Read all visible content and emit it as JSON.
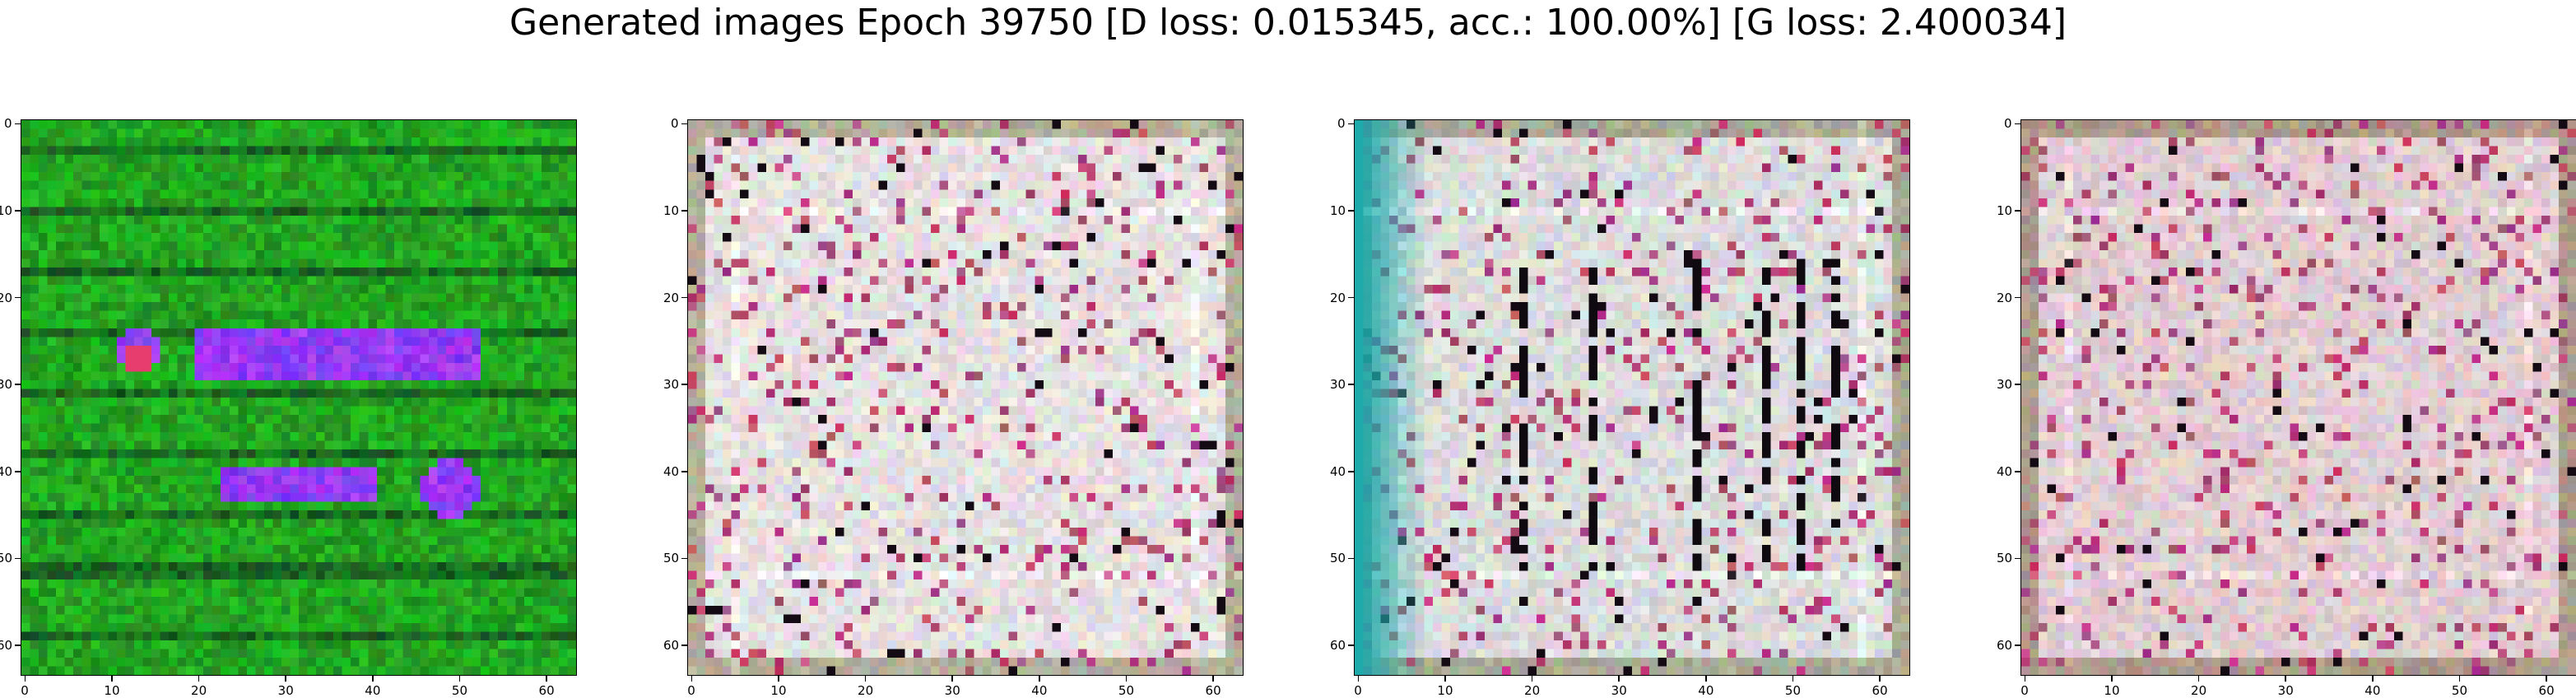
{
  "figure": {
    "title": "Generated images Epoch 39750 [D loss: 0.015345, acc.: 100.00%] [G loss: 2.400034]"
  },
  "panels": [
    {
      "name": "generated-image-1",
      "palette": "green-blue",
      "image_size": 64
    },
    {
      "name": "generated-image-2",
      "palette": "noise-light",
      "image_size": 64
    },
    {
      "name": "generated-image-3",
      "palette": "noise-cyan",
      "image_size": 64
    },
    {
      "name": "generated-image-4",
      "palette": "noise-pink",
      "image_size": 64
    }
  ],
  "axes": {
    "x_ticks": [
      "0",
      "10",
      "20",
      "30",
      "40",
      "50",
      "60"
    ],
    "y_ticks": [
      "0",
      "10",
      "20",
      "30",
      "40",
      "50",
      "60"
    ],
    "x_tick_values": [
      0,
      10,
      20,
      30,
      40,
      50,
      60
    ],
    "y_tick_values": [
      0,
      10,
      20,
      30,
      40,
      50,
      60
    ],
    "xlim": [
      -0.5,
      63.5
    ],
    "ylim": [
      63.5,
      -0.5
    ]
  }
}
